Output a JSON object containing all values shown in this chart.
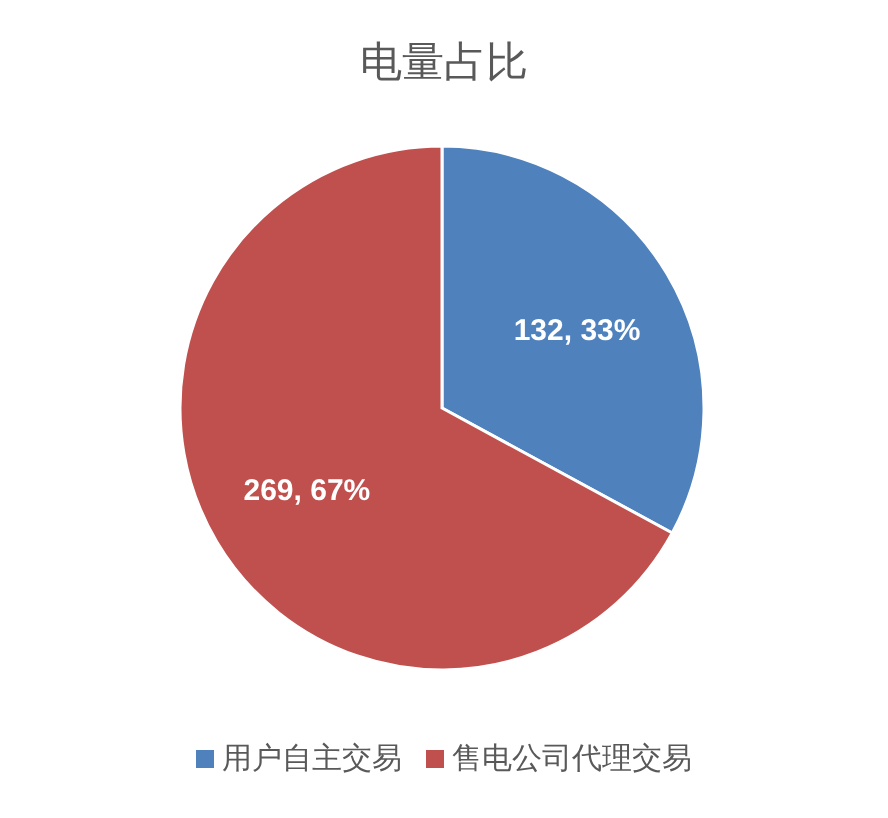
{
  "chart_data": {
    "type": "pie",
    "title": "电量占比",
    "categories": [
      "用户自主交易",
      "售电公司代理交易"
    ],
    "values": [
      132,
      269
    ],
    "colors": [
      "#4f81bd",
      "#c0504d"
    ],
    "value_labels": [
      "132, 33%",
      "269, 67%"
    ],
    "legend": "bottom"
  }
}
